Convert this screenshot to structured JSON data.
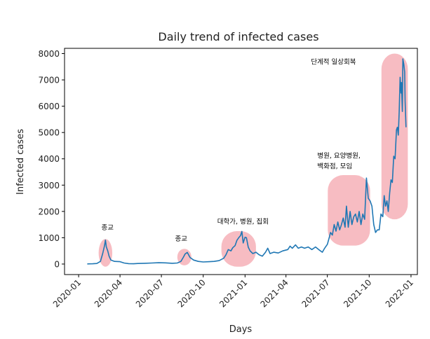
{
  "chart_data": {
    "type": "line",
    "title": "Daily trend of infected cases",
    "xlabel": "Days",
    "ylabel": "Infected cases",
    "ylim": [
      -400,
      8200
    ],
    "xlim": [
      "2019-12-01",
      "2022-01-15"
    ],
    "yticks": [
      0,
      1000,
      2000,
      3000,
      4000,
      5000,
      6000,
      7000,
      8000
    ],
    "xticks": [
      "2020-01",
      "2020-04",
      "2020-07",
      "2020-10",
      "2021-01",
      "2021-04",
      "2021-07",
      "2021-10",
      "2022-01"
    ],
    "grid": false,
    "line_color": "#1f77b4",
    "highlight_color": "#f4a6ad",
    "series": [
      {
        "points": [
          [
            "2020-01-20",
            5
          ],
          [
            "2020-02-01",
            10
          ],
          [
            "2020-02-10",
            20
          ],
          [
            "2020-02-18",
            100
          ],
          [
            "2020-02-23",
            400
          ],
          [
            "2020-02-27",
            700
          ],
          [
            "2020-02-29",
            909
          ],
          [
            "2020-03-02",
            650
          ],
          [
            "2020-03-05",
            500
          ],
          [
            "2020-03-08",
            300
          ],
          [
            "2020-03-12",
            150
          ],
          [
            "2020-03-20",
            100
          ],
          [
            "2020-04-01",
            90
          ],
          [
            "2020-04-10",
            40
          ],
          [
            "2020-04-20",
            15
          ],
          [
            "2020-05-01",
            10
          ],
          [
            "2020-05-10",
            20
          ],
          [
            "2020-05-25",
            30
          ],
          [
            "2020-06-10",
            40
          ],
          [
            "2020-06-25",
            50
          ],
          [
            "2020-07-10",
            45
          ],
          [
            "2020-07-25",
            30
          ],
          [
            "2020-08-05",
            40
          ],
          [
            "2020-08-13",
            100
          ],
          [
            "2020-08-18",
            250
          ],
          [
            "2020-08-22",
            380
          ],
          [
            "2020-08-27",
            441
          ],
          [
            "2020-09-02",
            250
          ],
          [
            "2020-09-10",
            150
          ],
          [
            "2020-09-20",
            100
          ],
          [
            "2020-10-01",
            80
          ],
          [
            "2020-10-15",
            90
          ],
          [
            "2020-10-25",
            100
          ],
          [
            "2020-11-05",
            130
          ],
          [
            "2020-11-15",
            220
          ],
          [
            "2020-11-20",
            350
          ],
          [
            "2020-11-25",
            550
          ],
          [
            "2020-12-01",
            500
          ],
          [
            "2020-12-05",
            620
          ],
          [
            "2020-12-10",
            700
          ],
          [
            "2020-12-14",
            900
          ],
          [
            "2020-12-18",
            1000
          ],
          [
            "2020-12-22",
            1080
          ],
          [
            "2020-12-25",
            1240
          ],
          [
            "2020-12-28",
            800
          ],
          [
            "2021-01-01",
            1020
          ],
          [
            "2021-01-04",
            1000
          ],
          [
            "2021-01-08",
            640
          ],
          [
            "2021-01-12",
            500
          ],
          [
            "2021-01-18",
            400
          ],
          [
            "2021-01-25",
            450
          ],
          [
            "2021-02-01",
            350
          ],
          [
            "2021-02-08",
            300
          ],
          [
            "2021-02-15",
            450
          ],
          [
            "2021-02-20",
            600
          ],
          [
            "2021-02-25",
            400
          ],
          [
            "2021-03-05",
            450
          ],
          [
            "2021-03-15",
            420
          ],
          [
            "2021-03-25",
            500
          ],
          [
            "2021-04-05",
            550
          ],
          [
            "2021-04-10",
            680
          ],
          [
            "2021-04-15",
            600
          ],
          [
            "2021-04-22",
            730
          ],
          [
            "2021-04-28",
            600
          ],
          [
            "2021-05-05",
            650
          ],
          [
            "2021-05-12",
            600
          ],
          [
            "2021-05-20",
            650
          ],
          [
            "2021-05-28",
            550
          ],
          [
            "2021-06-05",
            650
          ],
          [
            "2021-06-12",
            550
          ],
          [
            "2021-06-20",
            450
          ],
          [
            "2021-06-25",
            600
          ],
          [
            "2021-07-01",
            750
          ],
          [
            "2021-07-05",
            1000
          ],
          [
            "2021-07-08",
            1200
          ],
          [
            "2021-07-12",
            1100
          ],
          [
            "2021-07-16",
            1500
          ],
          [
            "2021-07-20",
            1250
          ],
          [
            "2021-07-24",
            1600
          ],
          [
            "2021-07-28",
            1300
          ],
          [
            "2021-08-01",
            1500
          ],
          [
            "2021-08-05",
            1750
          ],
          [
            "2021-08-09",
            1400
          ],
          [
            "2021-08-12",
            2200
          ],
          [
            "2021-08-16",
            1400
          ],
          [
            "2021-08-20",
            2000
          ],
          [
            "2021-08-24",
            1500
          ],
          [
            "2021-08-28",
            1800
          ],
          [
            "2021-09-01",
            1900
          ],
          [
            "2021-09-05",
            1600
          ],
          [
            "2021-09-09",
            2000
          ],
          [
            "2021-09-13",
            1500
          ],
          [
            "2021-09-17",
            1900
          ],
          [
            "2021-09-21",
            1700
          ],
          [
            "2021-09-25",
            3270
          ],
          [
            "2021-09-29",
            2500
          ],
          [
            "2021-10-03",
            2400
          ],
          [
            "2021-10-07",
            2200
          ],
          [
            "2021-10-11",
            1500
          ],
          [
            "2021-10-15",
            1200
          ],
          [
            "2021-10-19",
            1300
          ],
          [
            "2021-10-23",
            1300
          ],
          [
            "2021-10-27",
            1900
          ],
          [
            "2021-10-31",
            1800
          ],
          [
            "2021-11-03",
            2600
          ],
          [
            "2021-11-06",
            2200
          ],
          [
            "2021-11-09",
            2400
          ],
          [
            "2021-11-12",
            2000
          ],
          [
            "2021-11-15",
            2700
          ],
          [
            "2021-11-18",
            3200
          ],
          [
            "2021-11-21",
            3100
          ],
          [
            "2021-11-24",
            4100
          ],
          [
            "2021-11-27",
            4000
          ],
          [
            "2021-11-30",
            5100
          ],
          [
            "2021-12-02",
            5200
          ],
          [
            "2021-12-04",
            4900
          ],
          [
            "2021-12-06",
            5800
          ],
          [
            "2021-12-08",
            7100
          ],
          [
            "2021-12-10",
            6500
          ],
          [
            "2021-12-11",
            6900
          ],
          [
            "2021-12-13",
            5800
          ],
          [
            "2021-12-14",
            7800
          ],
          [
            "2021-12-16",
            7600
          ],
          [
            "2021-12-18",
            7300
          ],
          [
            "2021-12-19",
            6200
          ],
          [
            "2021-12-21",
            5200
          ]
        ]
      }
    ],
    "highlights": [
      {
        "x": [
          "2020-02-14",
          "2020-03-15"
        ],
        "y": [
          -100,
          950
        ]
      },
      {
        "x": [
          "2020-08-05",
          "2020-09-05"
        ],
        "y": [
          -50,
          580
        ]
      },
      {
        "x": [
          "2020-11-10",
          "2021-01-25"
        ],
        "y": [
          -100,
          1250
        ]
      },
      {
        "x": [
          "2021-07-02",
          "2021-10-03"
        ],
        "y": [
          700,
          3380
        ]
      },
      {
        "x": [
          "2021-10-28",
          "2021-12-25"
        ],
        "y": [
          1700,
          8000
        ]
      }
    ],
    "annotations": [
      {
        "text": "종교",
        "x": "2020-02-20",
        "y": 1300
      },
      {
        "text": "종교",
        "x": "2020-07-31",
        "y": 880
      },
      {
        "text": "대학가, 병원, 집회",
        "x": "2020-11-01",
        "y": 1530
      },
      {
        "text": "병원, 요양병원,",
        "x": "2021-06-09",
        "y": 4030
      },
      {
        "text": "백화점, 모임",
        "x": "2021-06-09",
        "y": 3640
      },
      {
        "text": "단계적 일상회복",
        "x": "2021-05-26",
        "y": 7600
      }
    ]
  }
}
